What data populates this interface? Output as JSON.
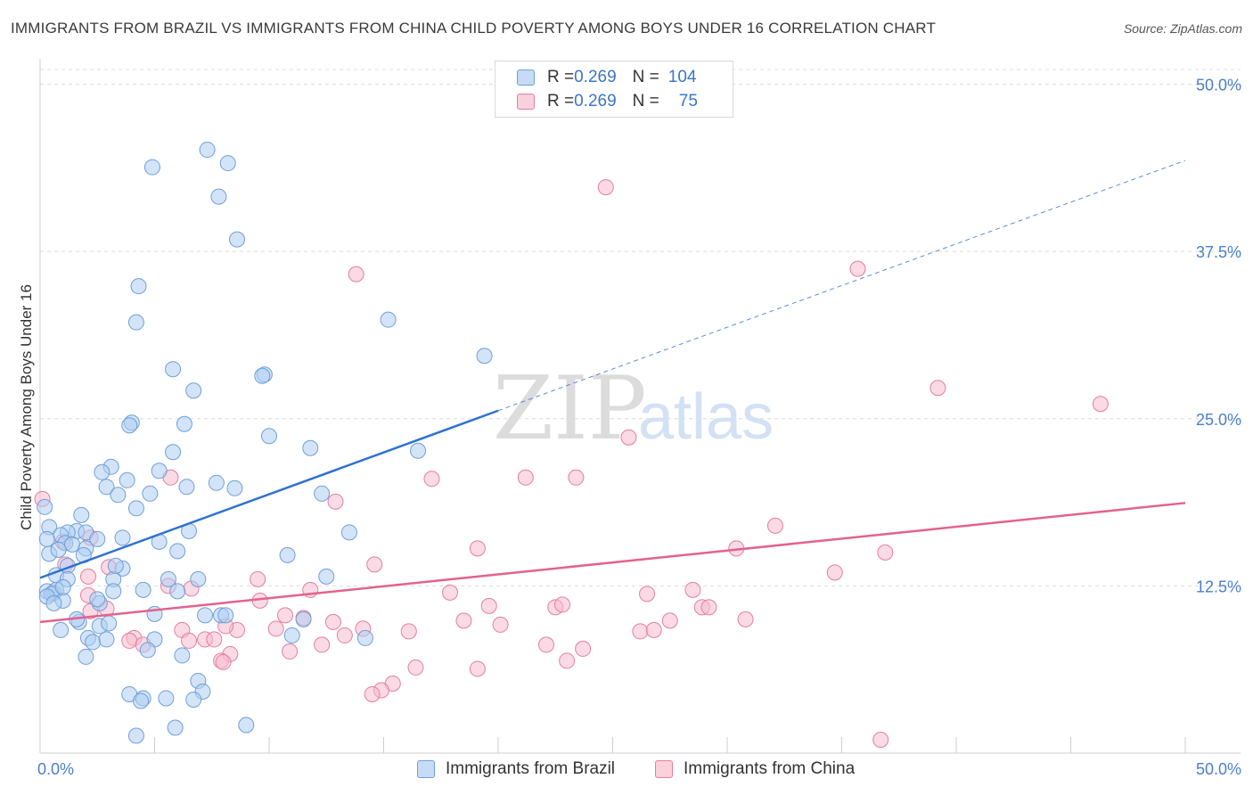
{
  "title": "IMMIGRANTS FROM BRAZIL VS IMMIGRANTS FROM CHINA CHILD POVERTY AMONG BOYS UNDER 16 CORRELATION CHART",
  "source": "Source: ZipAtlas.com",
  "watermark": {
    "zip": "ZIP",
    "atlas": "atlas"
  },
  "legend": {
    "rows": [
      {
        "r_label": "R = ",
        "r_value": "0.269",
        "n_label": "N = ",
        "n_value": "104"
      },
      {
        "r_label": "R = ",
        "r_value": "0.269",
        "n_label": "N = ",
        "n_value": "75"
      }
    ]
  },
  "colors": {
    "brazil_fill": "#aecdf2",
    "brazil_stroke": "#6f9fd8",
    "brazil_line": "#2f72d0",
    "china_fill": "#f6bccd",
    "china_stroke": "#e47fa0",
    "china_line": "#e3628e",
    "grid": "#dcdcdc",
    "tick_label": "#4a7fcb"
  },
  "chart_data": {
    "type": "scatter",
    "title": "IMMIGRANTS FROM BRAZIL VS IMMIGRANTS FROM CHINA CHILD POVERTY AMONG BOYS UNDER 16 CORRELATION CHART",
    "xlabel": "",
    "ylabel": "Child Poverty Among Boys Under 16",
    "xlim": [
      0,
      50
    ],
    "ylim": [
      0,
      50
    ],
    "x_tick_labels": [
      "0.0%",
      "50.0%"
    ],
    "y_ticks": [
      12.5,
      25.0,
      37.5,
      50.0
    ],
    "y_tick_labels": [
      "12.5%",
      "25.0%",
      "37.5%",
      "50.0%"
    ],
    "grid": true,
    "legend_position": "top-center",
    "series": [
      {
        "name": "Immigrants from Brazil",
        "R": 0.269,
        "N": 104,
        "trend": {
          "x": [
            0,
            20
          ],
          "y": [
            13.1,
            25.6
          ],
          "dashed_to": [
            50,
            44.3
          ]
        },
        "points": [
          [
            7.3,
            45.1
          ],
          [
            8.2,
            44.1
          ],
          [
            4.9,
            43.8
          ],
          [
            7.8,
            41.6
          ],
          [
            8.6,
            38.4
          ],
          [
            4.3,
            34.9
          ],
          [
            4.2,
            32.2
          ],
          [
            15.2,
            32.4
          ],
          [
            19.4,
            29.7
          ],
          [
            5.8,
            28.7
          ],
          [
            9.8,
            28.3
          ],
          [
            9.7,
            28.2
          ],
          [
            6.7,
            27.1
          ],
          [
            4.0,
            24.7
          ],
          [
            3.9,
            24.5
          ],
          [
            6.3,
            24.6
          ],
          [
            10.0,
            23.7
          ],
          [
            11.8,
            22.8
          ],
          [
            5.8,
            22.5
          ],
          [
            16.5,
            22.6
          ],
          [
            3.1,
            21.4
          ],
          [
            2.7,
            21.0
          ],
          [
            5.2,
            21.1
          ],
          [
            3.8,
            20.4
          ],
          [
            7.7,
            20.2
          ],
          [
            2.9,
            19.9
          ],
          [
            6.4,
            19.9
          ],
          [
            8.5,
            19.8
          ],
          [
            3.4,
            19.3
          ],
          [
            4.8,
            19.4
          ],
          [
            12.3,
            19.4
          ],
          [
            4.2,
            18.3
          ],
          [
            0.2,
            18.4
          ],
          [
            1.8,
            17.8
          ],
          [
            0.4,
            16.9
          ],
          [
            1.6,
            16.6
          ],
          [
            2.0,
            16.5
          ],
          [
            1.2,
            16.5
          ],
          [
            0.9,
            16.3
          ],
          [
            3.6,
            16.1
          ],
          [
            0.3,
            16.0
          ],
          [
            6.5,
            16.6
          ],
          [
            13.5,
            16.5
          ],
          [
            2.5,
            16.0
          ],
          [
            5.2,
            15.8
          ],
          [
            1.1,
            15.7
          ],
          [
            1.4,
            15.6
          ],
          [
            2.0,
            15.3
          ],
          [
            0.4,
            14.9
          ],
          [
            6.0,
            15.1
          ],
          [
            1.9,
            14.8
          ],
          [
            10.8,
            14.8
          ],
          [
            1.2,
            14.0
          ],
          [
            3.6,
            13.8
          ],
          [
            0.7,
            13.3
          ],
          [
            1.2,
            13.0
          ],
          [
            3.2,
            13.0
          ],
          [
            5.6,
            13.0
          ],
          [
            6.9,
            13.0
          ],
          [
            12.5,
            13.2
          ],
          [
            0.3,
            12.1
          ],
          [
            0.6,
            12.0
          ],
          [
            0.7,
            12.2
          ],
          [
            3.2,
            12.1
          ],
          [
            4.5,
            12.2
          ],
          [
            6.0,
            12.1
          ],
          [
            0.5,
            11.9
          ],
          [
            0.3,
            11.7
          ],
          [
            1.0,
            11.4
          ],
          [
            2.6,
            11.2
          ],
          [
            0.6,
            11.2
          ],
          [
            5.0,
            10.4
          ],
          [
            7.2,
            10.3
          ],
          [
            7.9,
            10.3
          ],
          [
            2.6,
            9.5
          ],
          [
            3.0,
            9.7
          ],
          [
            1.7,
            9.8
          ],
          [
            0.9,
            9.2
          ],
          [
            11.5,
            10.0
          ],
          [
            2.1,
            8.6
          ],
          [
            2.3,
            8.3
          ],
          [
            2.9,
            8.5
          ],
          [
            5.0,
            8.5
          ],
          [
            11.0,
            8.8
          ],
          [
            14.2,
            8.6
          ],
          [
            4.7,
            7.7
          ],
          [
            6.2,
            7.3
          ],
          [
            2.0,
            7.2
          ],
          [
            6.9,
            5.4
          ],
          [
            3.9,
            4.4
          ],
          [
            7.1,
            4.6
          ],
          [
            4.5,
            4.1
          ],
          [
            4.4,
            3.9
          ],
          [
            5.5,
            4.1
          ],
          [
            6.7,
            4.0
          ],
          [
            9.0,
            2.1
          ],
          [
            5.9,
            1.9
          ],
          [
            4.2,
            1.3
          ],
          [
            1.0,
            12.4
          ],
          [
            2.5,
            11.5
          ],
          [
            1.6,
            10.0
          ],
          [
            0.8,
            15.2
          ],
          [
            3.3,
            14.0
          ],
          [
            8.1,
            10.3
          ]
        ]
      },
      {
        "name": "Immigrants from China",
        "R": 0.269,
        "N": 75,
        "trend": {
          "x": [
            0,
            50
          ],
          "y": [
            9.8,
            18.7
          ]
        },
        "points": [
          [
            24.7,
            42.3
          ],
          [
            35.7,
            36.2
          ],
          [
            13.8,
            35.8
          ],
          [
            39.2,
            27.3
          ],
          [
            46.3,
            26.1
          ],
          [
            25.7,
            23.6
          ],
          [
            17.1,
            20.5
          ],
          [
            21.2,
            20.6
          ],
          [
            23.4,
            20.6
          ],
          [
            5.7,
            20.6
          ],
          [
            12.9,
            18.8
          ],
          [
            32.1,
            17.0
          ],
          [
            0.1,
            19.0
          ],
          [
            1.0,
            15.8
          ],
          [
            2.2,
            16.1
          ],
          [
            19.1,
            15.3
          ],
          [
            30.4,
            15.3
          ],
          [
            36.9,
            15.0
          ],
          [
            14.6,
            14.1
          ],
          [
            1.1,
            14.1
          ],
          [
            3.0,
            13.9
          ],
          [
            34.7,
            13.5
          ],
          [
            9.5,
            13.0
          ],
          [
            2.1,
            13.2
          ],
          [
            5.6,
            12.5
          ],
          [
            6.6,
            12.3
          ],
          [
            11.8,
            12.2
          ],
          [
            28.5,
            12.2
          ],
          [
            17.9,
            12.0
          ],
          [
            26.5,
            11.9
          ],
          [
            9.6,
            11.4
          ],
          [
            2.1,
            11.8
          ],
          [
            19.6,
            11.0
          ],
          [
            22.5,
            10.9
          ],
          [
            22.8,
            11.1
          ],
          [
            28.9,
            10.9
          ],
          [
            29.2,
            10.9
          ],
          [
            2.9,
            10.8
          ],
          [
            2.2,
            10.6
          ],
          [
            10.7,
            10.3
          ],
          [
            11.5,
            10.1
          ],
          [
            12.8,
            9.8
          ],
          [
            18.5,
            9.9
          ],
          [
            27.5,
            9.9
          ],
          [
            30.8,
            10.0
          ],
          [
            14.1,
            9.3
          ],
          [
            20.1,
            9.6
          ],
          [
            10.3,
            9.3
          ],
          [
            6.2,
            9.2
          ],
          [
            8.6,
            9.2
          ],
          [
            16.1,
            9.1
          ],
          [
            26.2,
            9.1
          ],
          [
            26.8,
            9.2
          ],
          [
            13.3,
            8.8
          ],
          [
            8.1,
            9.5
          ],
          [
            4.1,
            8.6
          ],
          [
            6.5,
            8.4
          ],
          [
            7.2,
            8.5
          ],
          [
            7.6,
            8.5
          ],
          [
            10.9,
            7.6
          ],
          [
            12.3,
            8.1
          ],
          [
            22.1,
            8.1
          ],
          [
            23.7,
            7.8
          ],
          [
            3.9,
            8.4
          ],
          [
            4.5,
            8.1
          ],
          [
            8.3,
            7.4
          ],
          [
            7.9,
            6.9
          ],
          [
            8.0,
            6.8
          ],
          [
            23.0,
            6.9
          ],
          [
            19.1,
            6.3
          ],
          [
            16.4,
            6.4
          ],
          [
            15.4,
            5.2
          ],
          [
            14.9,
            4.7
          ],
          [
            14.5,
            4.4
          ],
          [
            36.7,
            1.0
          ]
        ]
      }
    ]
  },
  "bottom_legend": {
    "brazil_label": "Immigrants from Brazil",
    "china_label": "Immigrants from China"
  }
}
